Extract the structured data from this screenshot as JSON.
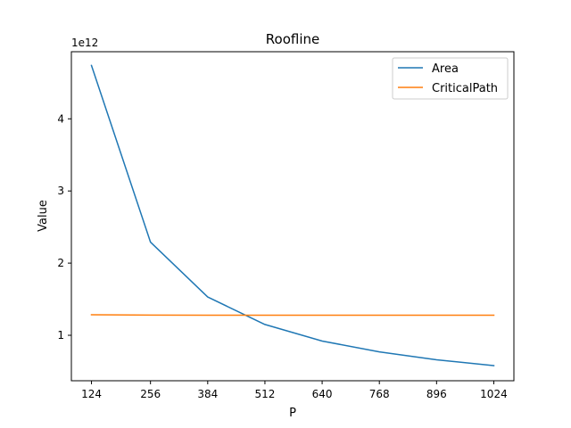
{
  "chart_data": {
    "type": "line",
    "title": "Roofline",
    "xlabel": "P",
    "ylabel": "Value",
    "y_offset_label": "1e12",
    "x": [
      124,
      256,
      384,
      512,
      640,
      768,
      896,
      1024
    ],
    "x_ticks": [
      124,
      256,
      384,
      512,
      640,
      768,
      896,
      1024
    ],
    "y_ticks": [
      1,
      2,
      3,
      4
    ],
    "xlim": [
      79,
      1069
    ],
    "ylim": [
      0.37,
      4.93
    ],
    "grid": false,
    "legend_position": "top-right",
    "series": [
      {
        "name": "Area",
        "color": "#1f77b4",
        "values": [
          4.74,
          2.29,
          1.53,
          1.15,
          0.92,
          0.77,
          0.66,
          0.58
        ]
      },
      {
        "name": "CriticalPath",
        "color": "#ff7f0e",
        "values": [
          1.285,
          1.28,
          1.278,
          1.278,
          1.278,
          1.278,
          1.278,
          1.278
        ]
      }
    ]
  }
}
